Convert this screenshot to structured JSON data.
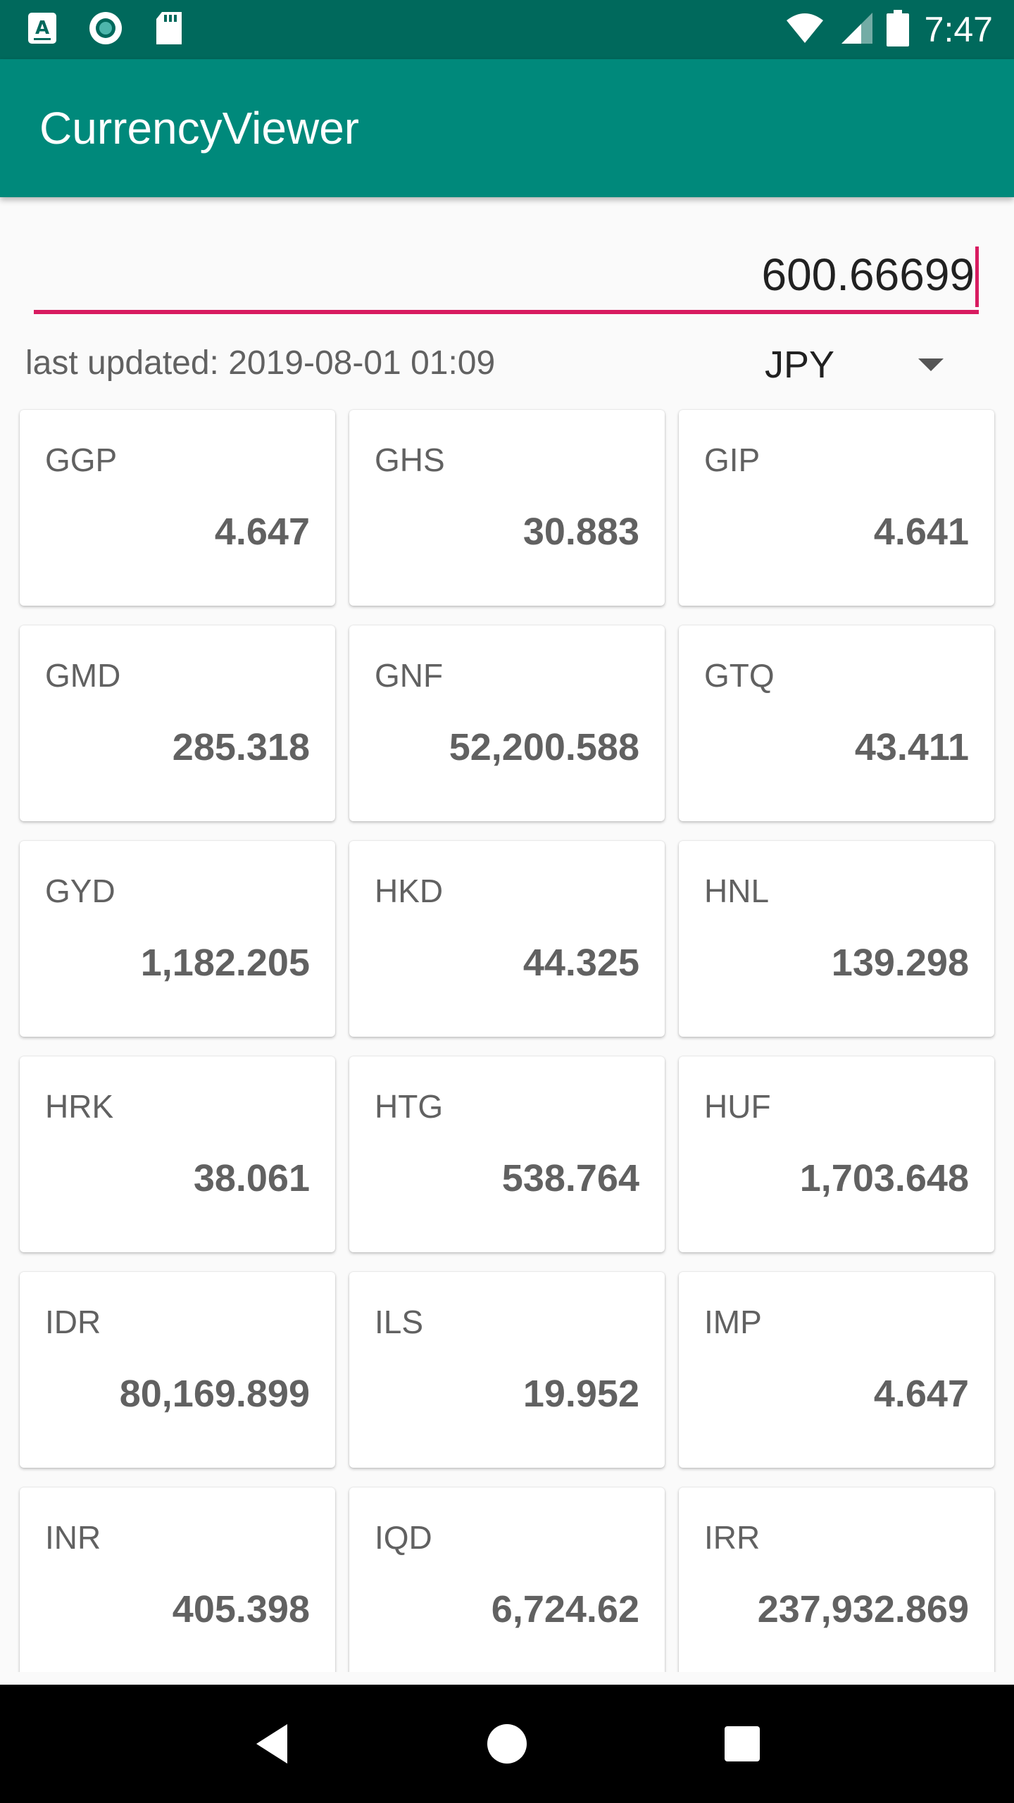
{
  "status_bar": {
    "time": "7:47",
    "icons_left": [
      "app-store-icon",
      "sync-circle-icon",
      "sd-card-icon"
    ],
    "icons_right": [
      "wifi-icon",
      "cellular-signal-icon",
      "battery-icon"
    ]
  },
  "app_bar": {
    "title": "CurrencyViewer"
  },
  "amount": {
    "value": "600.66699"
  },
  "last_updated": "last updated: 2019-08-01 01:09",
  "currency_selector": {
    "selected": "JPY"
  },
  "rates": [
    {
      "code": "GGP",
      "value": "4.647"
    },
    {
      "code": "GHS",
      "value": "30.883"
    },
    {
      "code": "GIP",
      "value": "4.641"
    },
    {
      "code": "GMD",
      "value": "285.318"
    },
    {
      "code": "GNF",
      "value": "52,200.588"
    },
    {
      "code": "GTQ",
      "value": "43.411"
    },
    {
      "code": "GYD",
      "value": "1,182.205"
    },
    {
      "code": "HKD",
      "value": "44.325"
    },
    {
      "code": "HNL",
      "value": "139.298"
    },
    {
      "code": "HRK",
      "value": "38.061"
    },
    {
      "code": "HTG",
      "value": "538.764"
    },
    {
      "code": "HUF",
      "value": "1,703.648"
    },
    {
      "code": "IDR",
      "value": "80,169.899"
    },
    {
      "code": "ILS",
      "value": "19.952"
    },
    {
      "code": "IMP",
      "value": "4.647"
    },
    {
      "code": "INR",
      "value": "405.398"
    },
    {
      "code": "IQD",
      "value": "6,724.62"
    },
    {
      "code": "IRR",
      "value": "237,932.869"
    }
  ],
  "nav_bar": {
    "buttons": [
      "back-icon",
      "home-icon",
      "recents-icon"
    ]
  },
  "colors": {
    "status_bar": "#00695c",
    "app_bar": "#00897b",
    "accent": "#d81b60",
    "background": "#fafafa",
    "card_text": "#616161"
  }
}
